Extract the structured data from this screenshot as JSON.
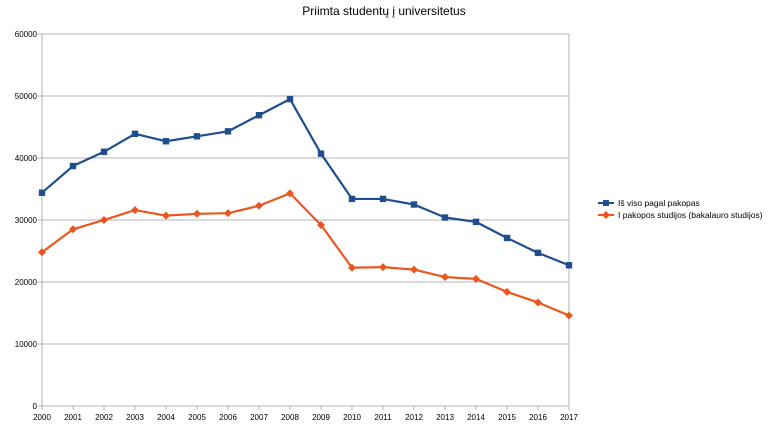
{
  "chart_data": {
    "type": "line",
    "title": "Priimta studentų į universitetus",
    "xlabel": "",
    "ylabel": "",
    "categories": [
      "2000",
      "2001",
      "2002",
      "2003",
      "2004",
      "2005",
      "2006",
      "2007",
      "2008",
      "2009",
      "2010",
      "2011",
      "2012",
      "2013",
      "2014",
      "2015",
      "2016",
      "2017"
    ],
    "ylim": [
      0,
      60000
    ],
    "yticks": [
      0,
      10000,
      20000,
      30000,
      40000,
      50000,
      60000
    ],
    "grid": true,
    "legend_position": "right",
    "series": [
      {
        "name": "Iš viso pagal pakopas",
        "color": "#1f4e8c",
        "marker": "square",
        "values": [
          34400,
          38700,
          41000,
          43900,
          42700,
          43500,
          44300,
          46900,
          49500,
          40700,
          33400,
          33400,
          32500,
          30400,
          29700,
          27100,
          24700,
          22700
        ]
      },
      {
        "name": "I pakopos studijos (bakalauro studijos)",
        "color": "#e9561f",
        "marker": "diamond",
        "values": [
          24800,
          28500,
          30000,
          31600,
          30700,
          31000,
          31100,
          32300,
          34300,
          29200,
          22300,
          22400,
          22000,
          20800,
          20500,
          18400,
          16700,
          14600
        ]
      }
    ]
  }
}
